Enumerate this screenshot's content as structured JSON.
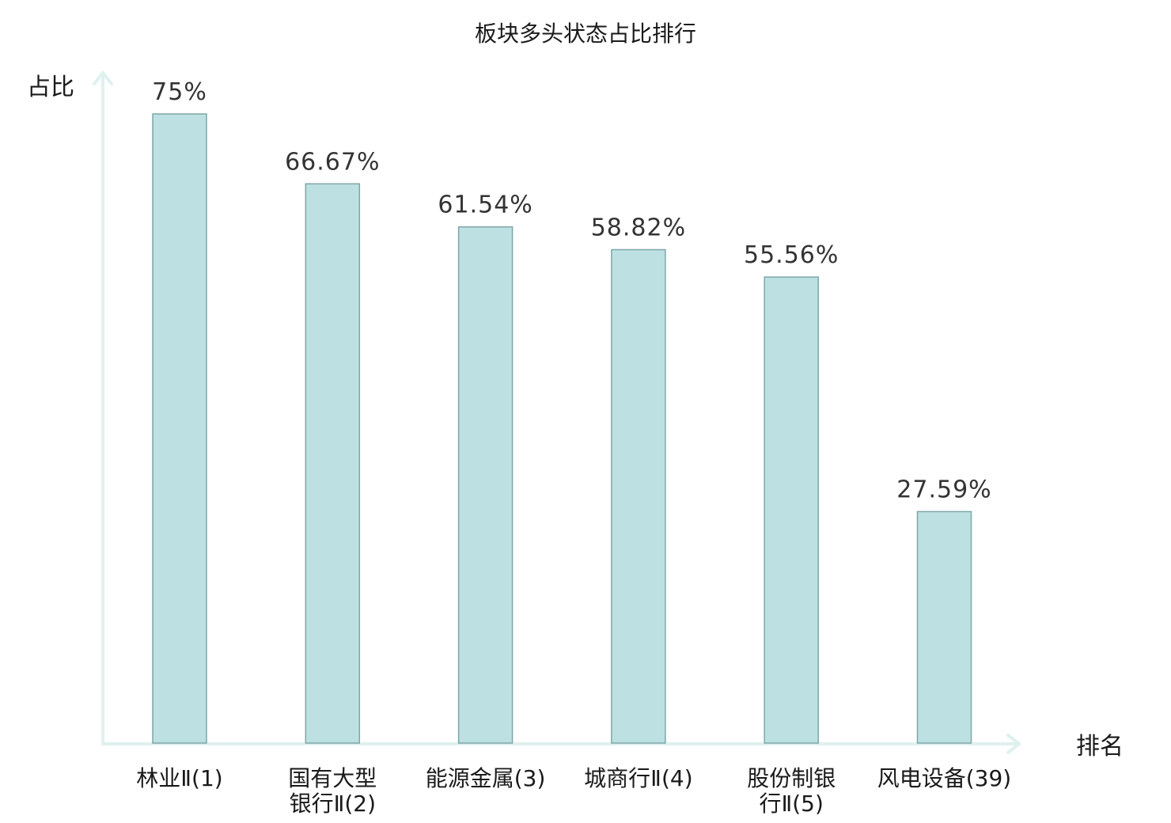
{
  "chart_data": {
    "type": "bar",
    "title": "板块多头状态占比排行",
    "ylabel": "占比",
    "xlabel": "排名",
    "categories": [
      [
        "林业Ⅱ(1)"
      ],
      [
        "国有大型",
        "银行Ⅱ(2)"
      ],
      [
        "能源金属(3)"
      ],
      [
        "城商行Ⅱ(4)"
      ],
      [
        "股份制银",
        "行Ⅱ(5)"
      ],
      [
        "风电设备(39)"
      ]
    ],
    "values": [
      75,
      66.67,
      61.54,
      58.82,
      55.56,
      27.59
    ],
    "value_labels": [
      "75%",
      "66.67%",
      "61.54%",
      "58.82%",
      "55.56%",
      "27.59%"
    ],
    "highlight_index": 5,
    "ylim": [
      0,
      75
    ],
    "grid": false,
    "colors": {
      "bar_fill": "#bde0e3",
      "bar_stroke": "#7fa6a8",
      "axis": "#dff1ef",
      "highlight_text": "#e8141b",
      "text": "#1a1a1a"
    }
  }
}
